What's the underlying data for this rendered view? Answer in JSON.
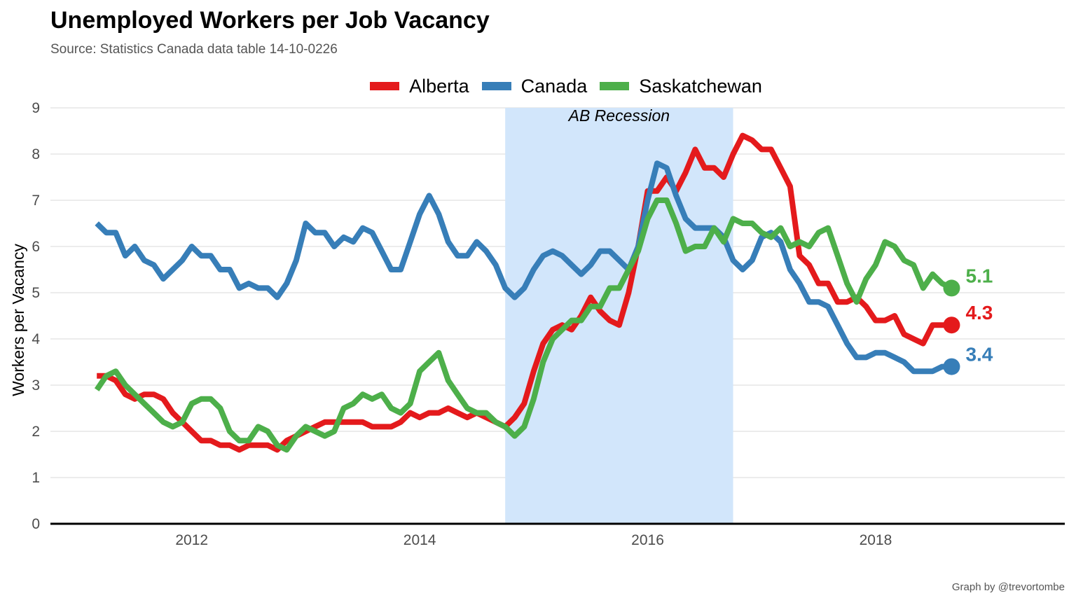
{
  "chart_data": {
    "type": "line",
    "title": "Unemployed Workers per Job Vacancy",
    "subtitle": "Source: Statistics Canada data table 14-10-0226",
    "caption": "Graph by @trevortombe",
    "ylabel": "Workers per Vacancy",
    "xlabel": "",
    "ylim": [
      0,
      9
    ],
    "xlim": [
      2010.76,
      2019.66
    ],
    "y_ticks": [
      0,
      1,
      2,
      3,
      4,
      5,
      6,
      7,
      8,
      9
    ],
    "x_ticks": [
      2012,
      2014,
      2016,
      2018
    ],
    "x_tick_labels": [
      "2012",
      "2014",
      "2016",
      "2018"
    ],
    "grid": "horizontal",
    "legend_position": "top",
    "shaded_region": {
      "label": "AB Recession",
      "x_start": 2014.75,
      "x_end": 2016.75,
      "color": "#d2e6fb"
    },
    "x": [
      2011.167,
      2011.25,
      2011.333,
      2011.417,
      2011.5,
      2011.583,
      2011.667,
      2011.75,
      2011.833,
      2011.917,
      2012.0,
      2012.083,
      2012.167,
      2012.25,
      2012.333,
      2012.417,
      2012.5,
      2012.583,
      2012.667,
      2012.75,
      2012.833,
      2012.917,
      2013.0,
      2013.083,
      2013.167,
      2013.25,
      2013.333,
      2013.417,
      2013.5,
      2013.583,
      2013.667,
      2013.75,
      2013.833,
      2013.917,
      2014.0,
      2014.083,
      2014.167,
      2014.25,
      2014.333,
      2014.417,
      2014.5,
      2014.583,
      2014.667,
      2014.75,
      2014.833,
      2014.917,
      2015.0,
      2015.083,
      2015.167,
      2015.25,
      2015.333,
      2015.417,
      2015.5,
      2015.583,
      2015.667,
      2015.75,
      2015.833,
      2015.917,
      2016.0,
      2016.083,
      2016.167,
      2016.25,
      2016.333,
      2016.417,
      2016.5,
      2016.583,
      2016.667,
      2016.75,
      2016.833,
      2016.917,
      2017.0,
      2017.083,
      2017.167,
      2017.25,
      2017.333,
      2017.417,
      2017.5,
      2017.583,
      2017.667,
      2017.75,
      2017.833,
      2017.917,
      2018.0,
      2018.083,
      2018.167,
      2018.25,
      2018.333,
      2018.417,
      2018.5,
      2018.583,
      2018.667
    ],
    "series": [
      {
        "name": "Alberta",
        "color": "#e41a1c",
        "end_label": "4.3",
        "values": [
          3.2,
          3.2,
          3.1,
          2.8,
          2.7,
          2.8,
          2.8,
          2.7,
          2.4,
          2.2,
          2.0,
          1.8,
          1.8,
          1.7,
          1.7,
          1.6,
          1.7,
          1.7,
          1.7,
          1.6,
          1.8,
          1.9,
          2.0,
          2.1,
          2.2,
          2.2,
          2.2,
          2.2,
          2.2,
          2.1,
          2.1,
          2.1,
          2.2,
          2.4,
          2.3,
          2.4,
          2.4,
          2.5,
          2.4,
          2.3,
          2.4,
          2.3,
          2.2,
          2.1,
          2.3,
          2.6,
          3.3,
          3.9,
          4.2,
          4.3,
          4.2,
          4.5,
          4.9,
          4.6,
          4.4,
          4.3,
          5.0,
          6.0,
          7.2,
          7.2,
          7.5,
          7.2,
          7.6,
          8.1,
          7.7,
          7.7,
          7.5,
          8.0,
          8.4,
          8.3,
          8.1,
          8.1,
          7.7,
          7.3,
          5.8,
          5.6,
          5.2,
          5.2,
          4.8,
          4.8,
          4.9,
          4.7,
          4.4,
          4.4,
          4.5,
          4.1,
          4.0,
          3.9,
          4.3,
          4.3,
          4.3
        ]
      },
      {
        "name": "Canada",
        "color": "#377eb8",
        "end_label": "3.4",
        "values": [
          6.5,
          6.3,
          6.3,
          5.8,
          6.0,
          5.7,
          5.6,
          5.3,
          5.5,
          5.7,
          6.0,
          5.8,
          5.8,
          5.5,
          5.5,
          5.1,
          5.2,
          5.1,
          5.1,
          4.9,
          5.2,
          5.7,
          6.5,
          6.3,
          6.3,
          6.0,
          6.2,
          6.1,
          6.4,
          6.3,
          5.9,
          5.5,
          5.5,
          6.1,
          6.7,
          7.1,
          6.7,
          6.1,
          5.8,
          5.8,
          6.1,
          5.9,
          5.6,
          5.1,
          4.9,
          5.1,
          5.5,
          5.8,
          5.9,
          5.8,
          5.6,
          5.4,
          5.6,
          5.9,
          5.9,
          5.7,
          5.5,
          6.0,
          7.0,
          7.8,
          7.7,
          7.1,
          6.6,
          6.4,
          6.4,
          6.4,
          6.2,
          5.7,
          5.5,
          5.7,
          6.2,
          6.3,
          6.1,
          5.5,
          5.2,
          4.8,
          4.8,
          4.7,
          4.3,
          3.9,
          3.6,
          3.6,
          3.7,
          3.7,
          3.6,
          3.5,
          3.3,
          3.3,
          3.3,
          3.4,
          3.4
        ]
      },
      {
        "name": "Saskatchewan",
        "color": "#4daf4a",
        "end_label": "5.1",
        "values": [
          2.9,
          3.2,
          3.3,
          3.0,
          2.8,
          2.6,
          2.4,
          2.2,
          2.1,
          2.2,
          2.6,
          2.7,
          2.7,
          2.5,
          2.0,
          1.8,
          1.8,
          2.1,
          2.0,
          1.7,
          1.6,
          1.9,
          2.1,
          2.0,
          1.9,
          2.0,
          2.5,
          2.6,
          2.8,
          2.7,
          2.8,
          2.5,
          2.4,
          2.6,
          3.3,
          3.5,
          3.7,
          3.1,
          2.8,
          2.5,
          2.4,
          2.4,
          2.2,
          2.1,
          1.9,
          2.1,
          2.7,
          3.5,
          4.0,
          4.2,
          4.4,
          4.4,
          4.7,
          4.7,
          5.1,
          5.1,
          5.5,
          5.9,
          6.6,
          7.0,
          7.0,
          6.5,
          5.9,
          6.0,
          6.0,
          6.4,
          6.1,
          6.6,
          6.5,
          6.5,
          6.3,
          6.2,
          6.4,
          6.0,
          6.1,
          6.0,
          6.3,
          6.4,
          5.8,
          5.2,
          4.8,
          5.3,
          5.6,
          6.1,
          6.0,
          5.7,
          5.6,
          5.1,
          5.4,
          5.2,
          5.1
        ]
      }
    ]
  }
}
